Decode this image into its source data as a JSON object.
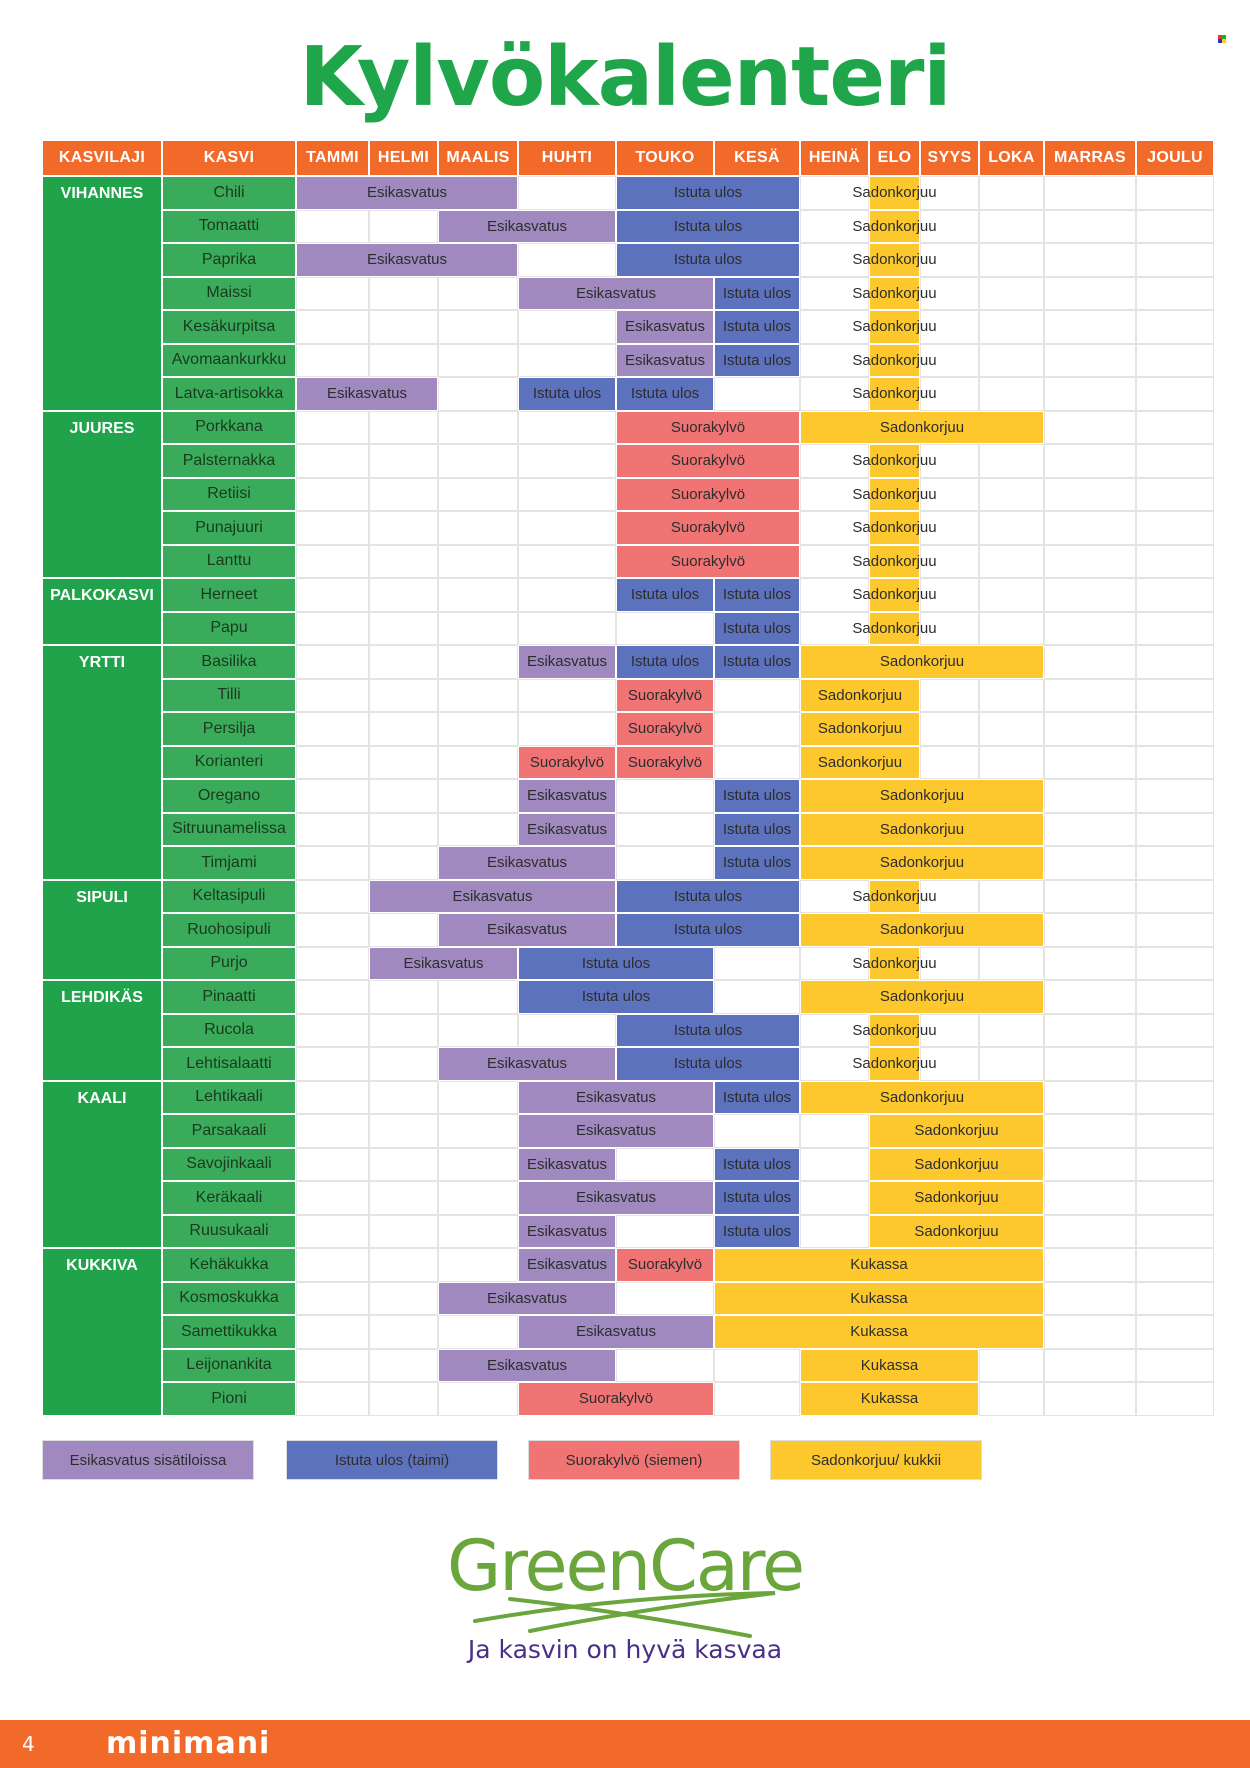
{
  "title": "Kylvökalenteri",
  "headers": {
    "kasvilaji": "KASVILAJI",
    "kasvi": "KASVI",
    "months": [
      "TAMMI",
      "HELMI",
      "MAALIS",
      "HUHTI",
      "TOUKO",
      "KESÄ",
      "HEINÄ",
      "ELO",
      "SYYS",
      "LOKA",
      "MARRAS",
      "JOULU"
    ]
  },
  "colors": {
    "Esikasvatus": "#a089be",
    "Istuta ulos": "#5c72bd",
    "Suorakylvö": "#f07474",
    "Sadonkorjuu": "#fdc82e",
    "Kukassa": "#fdc82e"
  },
  "groups": [
    {
      "name": "VIHANNES",
      "plants": [
        {
          "name": "Chili",
          "bars": [
            {
              "label": "Esikasvatus",
              "from": 1,
              "to": 3
            },
            {
              "label": "Istuta ulos",
              "from": 5,
              "to": 6
            },
            {
              "label": "Sadonkorjuu",
              "from": 8,
              "to": 8
            }
          ]
        },
        {
          "name": "Tomaatti",
          "bars": [
            {
              "label": "Esikasvatus",
              "from": 3,
              "to": 4
            },
            {
              "label": "Istuta ulos",
              "from": 5,
              "to": 6
            },
            {
              "label": "Sadonkorjuu",
              "from": 8,
              "to": 8
            }
          ]
        },
        {
          "name": "Paprika",
          "bars": [
            {
              "label": "Esikasvatus",
              "from": 1,
              "to": 3
            },
            {
              "label": "Istuta ulos",
              "from": 5,
              "to": 6
            },
            {
              "label": "Sadonkorjuu",
              "from": 8,
              "to": 8
            }
          ]
        },
        {
          "name": "Maissi",
          "bars": [
            {
              "label": "Esikasvatus",
              "from": 4,
              "to": 5
            },
            {
              "label": "Istuta ulos",
              "from": 6,
              "to": 6
            },
            {
              "label": "Sadonkorjuu",
              "from": 8,
              "to": 8
            }
          ]
        },
        {
          "name": "Kesäkurpitsa",
          "bars": [
            {
              "label": "Esikasvatus",
              "from": 5,
              "to": 5
            },
            {
              "label": "Istuta ulos",
              "from": 6,
              "to": 6
            },
            {
              "label": "Sadonkorjuu",
              "from": 8,
              "to": 8
            }
          ]
        },
        {
          "name": "Avomaankurkku",
          "bars": [
            {
              "label": "Esikasvatus",
              "from": 5,
              "to": 5
            },
            {
              "label": "Istuta ulos",
              "from": 6,
              "to": 6
            },
            {
              "label": "Sadonkorjuu",
              "from": 8,
              "to": 8
            }
          ]
        },
        {
          "name": "Latva-artisokka",
          "bars": [
            {
              "label": "Esikasvatus",
              "from": 1,
              "to": 2
            },
            {
              "label": "Istuta ulos",
              "from": 4,
              "to": 4
            },
            {
              "label": "Istuta ulos",
              "from": 5,
              "to": 5
            },
            {
              "label": "Sadonkorjuu",
              "from": 8,
              "to": 8
            }
          ]
        }
      ]
    },
    {
      "name": "JUURES",
      "plants": [
        {
          "name": "Porkkana",
          "bars": [
            {
              "label": "Suorakylvö",
              "from": 5,
              "to": 6
            },
            {
              "label": "Sadonkorjuu",
              "from": 7,
              "to": 10
            }
          ]
        },
        {
          "name": "Palsternakka",
          "bars": [
            {
              "label": "Suorakylvö",
              "from": 5,
              "to": 6
            },
            {
              "label": "Sadonkorjuu",
              "from": 8,
              "to": 8
            }
          ]
        },
        {
          "name": "Retiisi",
          "bars": [
            {
              "label": "Suorakylvö",
              "from": 5,
              "to": 6
            },
            {
              "label": "Sadonkorjuu",
              "from": 8,
              "to": 8
            }
          ]
        },
        {
          "name": "Punajuuri",
          "bars": [
            {
              "label": "Suorakylvö",
              "from": 5,
              "to": 6
            },
            {
              "label": "Sadonkorjuu",
              "from": 8,
              "to": 8
            }
          ]
        },
        {
          "name": "Lanttu",
          "bars": [
            {
              "label": "Suorakylvö",
              "from": 5,
              "to": 6
            },
            {
              "label": "Sadonkorjuu",
              "from": 8,
              "to": 8
            }
          ]
        }
      ]
    },
    {
      "name": "PALKOKASVI",
      "plants": [
        {
          "name": "Herneet",
          "bars": [
            {
              "label": "Istuta ulos",
              "from": 5,
              "to": 5
            },
            {
              "label": "Istuta ulos",
              "from": 6,
              "to": 6
            },
            {
              "label": "Sadonkorjuu",
              "from": 8,
              "to": 8
            }
          ]
        },
        {
          "name": "Papu",
          "bars": [
            {
              "label": "Istuta ulos",
              "from": 6,
              "to": 6
            },
            {
              "label": "Sadonkorjuu",
              "from": 8,
              "to": 8
            }
          ]
        }
      ]
    },
    {
      "name": "YRTTI",
      "plants": [
        {
          "name": "Basilika",
          "bars": [
            {
              "label": "Esikasvatus",
              "from": 4,
              "to": 4
            },
            {
              "label": "Istuta ulos",
              "from": 5,
              "to": 5
            },
            {
              "label": "Istuta ulos",
              "from": 6,
              "to": 6
            },
            {
              "label": "Sadonkorjuu",
              "from": 7,
              "to": 10
            }
          ]
        },
        {
          "name": "Tilli",
          "bars": [
            {
              "label": "Suorakylvö",
              "from": 5,
              "to": 5
            },
            {
              "label": "Sadonkorjuu",
              "from": 7,
              "to": 8
            }
          ]
        },
        {
          "name": "Persilja",
          "bars": [
            {
              "label": "Suorakylvö",
              "from": 5,
              "to": 5
            },
            {
              "label": "Sadonkorjuu",
              "from": 7,
              "to": 8
            }
          ]
        },
        {
          "name": "Korianteri",
          "bars": [
            {
              "label": "Suorakylvö",
              "from": 4,
              "to": 4
            },
            {
              "label": "Suorakylvö",
              "from": 5,
              "to": 5
            },
            {
              "label": "Sadonkorjuu",
              "from": 7,
              "to": 8
            }
          ]
        },
        {
          "name": "Oregano",
          "bars": [
            {
              "label": "Esikasvatus",
              "from": 4,
              "to": 4
            },
            {
              "label": "Istuta ulos",
              "from": 6,
              "to": 6
            },
            {
              "label": "Sadonkorjuu",
              "from": 7,
              "to": 10
            }
          ]
        },
        {
          "name": "Sitruunamelissa",
          "bars": [
            {
              "label": "Esikasvatus",
              "from": 4,
              "to": 4
            },
            {
              "label": "Istuta ulos",
              "from": 6,
              "to": 6
            },
            {
              "label": "Sadonkorjuu",
              "from": 7,
              "to": 10
            }
          ]
        },
        {
          "name": "Timjami",
          "bars": [
            {
              "label": "Esikasvatus",
              "from": 3,
              "to": 4
            },
            {
              "label": "Istuta ulos",
              "from": 6,
              "to": 6
            },
            {
              "label": "Sadonkorjuu",
              "from": 7,
              "to": 10
            }
          ]
        }
      ]
    },
    {
      "name": "SIPULI",
      "plants": [
        {
          "name": "Keltasipuli",
          "bars": [
            {
              "label": "Esikasvatus",
              "from": 2,
              "to": 4
            },
            {
              "label": "Istuta ulos",
              "from": 5,
              "to": 6
            },
            {
              "label": "Sadonkorjuu",
              "from": 8,
              "to": 8
            }
          ]
        },
        {
          "name": "Ruohosipuli",
          "bars": [
            {
              "label": "Esikasvatus",
              "from": 3,
              "to": 4
            },
            {
              "label": "Istuta ulos",
              "from": 5,
              "to": 6
            },
            {
              "label": "Sadonkorjuu",
              "from": 7,
              "to": 10
            }
          ]
        },
        {
          "name": "Purjo",
          "bars": [
            {
              "label": "Esikasvatus",
              "from": 2,
              "to": 3
            },
            {
              "label": "Istuta ulos",
              "from": 4,
              "to": 5
            },
            {
              "label": "Sadonkorjuu",
              "from": 8,
              "to": 8
            }
          ]
        }
      ]
    },
    {
      "name": "LEHDIKÄS",
      "plants": [
        {
          "name": "Pinaatti",
          "bars": [
            {
              "label": "Istuta ulos",
              "from": 4,
              "to": 5
            },
            {
              "label": "Sadonkorjuu",
              "from": 7,
              "to": 10
            }
          ]
        },
        {
          "name": "Rucola",
          "bars": [
            {
              "label": "Istuta ulos",
              "from": 5,
              "to": 6
            },
            {
              "label": "Sadonkorjuu",
              "from": 8,
              "to": 8
            }
          ]
        },
        {
          "name": "Lehtisalaatti",
          "bars": [
            {
              "label": "Esikasvatus",
              "from": 3,
              "to": 4
            },
            {
              "label": "Istuta ulos",
              "from": 5,
              "to": 6
            },
            {
              "label": "Sadonkorjuu",
              "from": 8,
              "to": 8
            }
          ]
        }
      ]
    },
    {
      "name": "KAALI",
      "plants": [
        {
          "name": "Lehtikaali",
          "bars": [
            {
              "label": "Esikasvatus",
              "from": 4,
              "to": 5
            },
            {
              "label": "Istuta ulos",
              "from": 6,
              "to": 6
            },
            {
              "label": "Sadonkorjuu",
              "from": 7,
              "to": 10
            }
          ]
        },
        {
          "name": "Parsakaali",
          "bars": [
            {
              "label": "Esikasvatus",
              "from": 4,
              "to": 5
            },
            {
              "label": "Sadonkorjuu",
              "from": 8,
              "to": 10
            }
          ]
        },
        {
          "name": "Savojinkaali",
          "bars": [
            {
              "label": "Esikasvatus",
              "from": 4,
              "to": 4
            },
            {
              "label": "Istuta ulos",
              "from": 6,
              "to": 6
            },
            {
              "label": "Sadonkorjuu",
              "from": 8,
              "to": 10
            }
          ]
        },
        {
          "name": "Keräkaali",
          "bars": [
            {
              "label": "Esikasvatus",
              "from": 4,
              "to": 5
            },
            {
              "label": "Istuta ulos",
              "from": 6,
              "to": 6
            },
            {
              "label": "Sadonkorjuu",
              "from": 8,
              "to": 10
            }
          ]
        },
        {
          "name": "Ruusukaali",
          "bars": [
            {
              "label": "Esikasvatus",
              "from": 4,
              "to": 4
            },
            {
              "label": "Istuta ulos",
              "from": 6,
              "to": 6
            },
            {
              "label": "Sadonkorjuu",
              "from": 8,
              "to": 10
            }
          ]
        }
      ]
    },
    {
      "name": "KUKKIVA",
      "plants": [
        {
          "name": "Kehäkukka",
          "bars": [
            {
              "label": "Esikasvatus",
              "from": 4,
              "to": 4
            },
            {
              "label": "Suorakylvö",
              "from": 5,
              "to": 5
            },
            {
              "label": "Kukassa",
              "from": 6,
              "to": 10
            }
          ]
        },
        {
          "name": "Kosmoskukka",
          "bars": [
            {
              "label": "Esikasvatus",
              "from": 3,
              "to": 4
            },
            {
              "label": "Kukassa",
              "from": 6,
              "to": 10
            }
          ]
        },
        {
          "name": "Samettikukka",
          "bars": [
            {
              "label": "Esikasvatus",
              "from": 4,
              "to": 5
            },
            {
              "label": "Kukassa",
              "from": 6,
              "to": 10
            }
          ]
        },
        {
          "name": "Leijonankita",
          "bars": [
            {
              "label": "Esikasvatus",
              "from": 3,
              "to": 4
            },
            {
              "label": "Kukassa",
              "from": 7,
              "to": 9
            }
          ]
        },
        {
          "name": "Pioni",
          "bars": [
            {
              "label": "Suorakylvö",
              "from": 4,
              "to": 5
            },
            {
              "label": "Kukassa",
              "from": 7,
              "to": 9
            }
          ]
        }
      ]
    }
  ],
  "legend": [
    {
      "label": "Esikasvatus sisätiloissa",
      "color": "#a089be"
    },
    {
      "label": "Istuta ulos (taimi)",
      "color": "#5c72bd"
    },
    {
      "label": "Suorakylvö (siemen)",
      "color": "#f07474"
    },
    {
      "label": "Sadonkorjuu/ kukkii",
      "color": "#fdc82e"
    }
  ],
  "logo": {
    "brand": "GreenCare",
    "tagline": "Ja kasvin on hyvä kasvaa",
    "color": "#6aa63c"
  },
  "footer": {
    "page_number": "4",
    "store": "minimani",
    "color": "#f26a2a"
  }
}
